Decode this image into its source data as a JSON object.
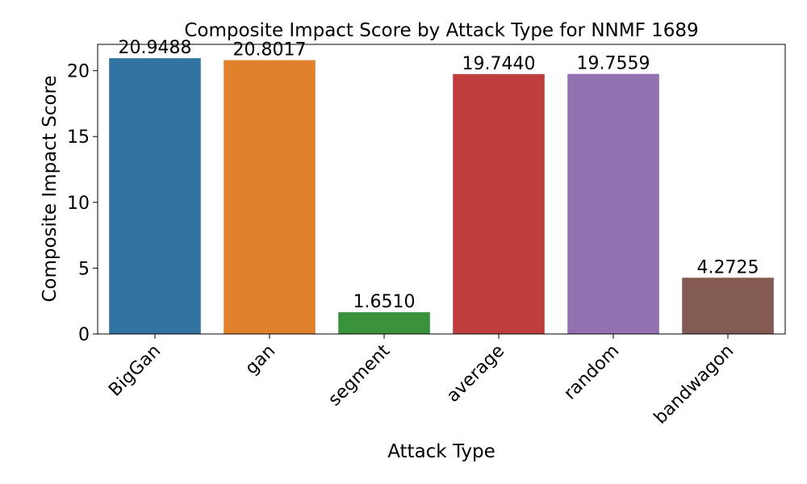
{
  "chart_data": {
    "type": "bar",
    "title": "Composite Impact Score by Attack Type for NNMF 1689",
    "xlabel": "Attack Type",
    "ylabel": "Composite Impact Score",
    "categories": [
      "BigGan",
      "gan",
      "segment",
      "average",
      "random",
      "bandwagon"
    ],
    "values": [
      20.9488,
      20.8017,
      1.651,
      19.744,
      19.7559,
      4.2725
    ],
    "value_labels": [
      "20.9488",
      "20.8017",
      "1.6510",
      "19.7440",
      "19.7559",
      "4.2725"
    ],
    "colors": [
      "#3274a1",
      "#e1812c",
      "#3a923a",
      "#c03d3e",
      "#9372b2",
      "#845b53"
    ],
    "ylim": [
      0,
      22
    ],
    "yticks": [
      0,
      5,
      10,
      15,
      20
    ],
    "ytick_labels": [
      "0",
      "5",
      "10",
      "15",
      "20"
    ],
    "grid": false,
    "legend": "none",
    "xtick_rotation_deg": 45
  }
}
